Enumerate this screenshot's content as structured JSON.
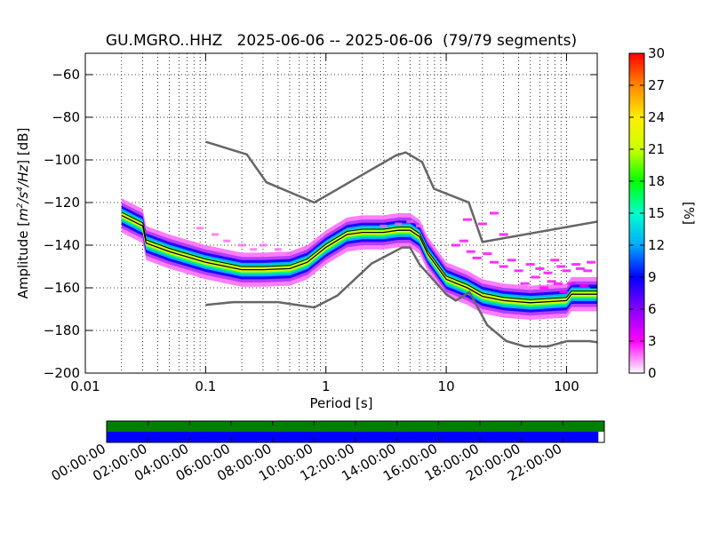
{
  "chart_data": {
    "type": "heatmap",
    "title": "GU.MGRO..HHZ   2025-06-06 -- 2025-06-06  (79/79 segments)",
    "xlabel": "Period [s]",
    "ylabel_prefix": "Amplitude [",
    "ylabel_unit_html": "m<tspan dy=\"-6\" font-size=\"9\">2</tspan><tspan dy=\"6\">/s</tspan><tspan dy=\"-6\" font-size=\"9\">4</tspan><tspan dy=\"6\">/Hz</tspan>",
    "ylabel_suffix": "] [dB]",
    "x_scale": "log",
    "xlim": [
      0.01,
      180
    ],
    "ylim": [
      -200,
      -50
    ],
    "x_ticks": [
      {
        "value": 0.01,
        "label": "0.01"
      },
      {
        "value": 0.1,
        "label": "0.1"
      },
      {
        "value": 1,
        "label": "1"
      },
      {
        "value": 10,
        "label": "10"
      },
      {
        "value": 100,
        "label": "100"
      }
    ],
    "y_ticks": [
      {
        "value": -60,
        "label": "−60"
      },
      {
        "value": -80,
        "label": "−80"
      },
      {
        "value": -100,
        "label": "−100"
      },
      {
        "value": -120,
        "label": "−120"
      },
      {
        "value": -140,
        "label": "−140"
      },
      {
        "value": -160,
        "label": "−160"
      },
      {
        "value": -180,
        "label": "−180"
      },
      {
        "value": -200,
        "label": "−200"
      }
    ],
    "grid": true,
    "colorbar": {
      "label": "[%]",
      "min": 0,
      "max": 30,
      "ticks": [
        "0",
        "3",
        "6",
        "9",
        "12",
        "15",
        "18",
        "21",
        "24",
        "27",
        "30"
      ]
    },
    "noise_models": [
      {
        "name": "high",
        "points": [
          [
            0.1,
            -91.5
          ],
          [
            0.22,
            -97.4
          ],
          [
            0.32,
            -110.5
          ],
          [
            0.8,
            -120
          ],
          [
            3.8,
            -98
          ],
          [
            4.6,
            -96.5
          ],
          [
            6.3,
            -101
          ],
          [
            7.9,
            -113.5
          ],
          [
            15.4,
            -120
          ],
          [
            20,
            -138.5
          ],
          [
            354.8,
            -126
          ]
        ]
      },
      {
        "name": "low",
        "points": [
          [
            0.1,
            -168
          ],
          [
            0.17,
            -166.7
          ],
          [
            0.4,
            -166.7
          ],
          [
            0.8,
            -169.2
          ],
          [
            1.24,
            -163.7
          ],
          [
            2.4,
            -148.6
          ],
          [
            4.3,
            -141.1
          ],
          [
            5,
            -141.1
          ],
          [
            6,
            -149
          ],
          [
            10,
            -163
          ],
          [
            12,
            -166
          ],
          [
            15.6,
            -162
          ],
          [
            21.9,
            -177.5
          ],
          [
            31.6,
            -185
          ],
          [
            45,
            -187.5
          ],
          [
            70,
            -187.5
          ],
          [
            101,
            -185
          ],
          [
            154,
            -185
          ],
          [
            328,
            -187.5
          ]
        ]
      }
    ],
    "center_line": {
      "points": [
        [
          0.02,
          -126
        ],
        [
          0.03,
          -131
        ],
        [
          0.032,
          -139
        ],
        [
          0.05,
          -143
        ],
        [
          0.1,
          -148
        ],
        [
          0.2,
          -151.5
        ],
        [
          0.3,
          -151.5
        ],
        [
          0.5,
          -151
        ],
        [
          0.7,
          -148
        ],
        [
          1,
          -141
        ],
        [
          1.5,
          -135
        ],
        [
          2,
          -134
        ],
        [
          3,
          -134
        ],
        [
          4,
          -133
        ],
        [
          5,
          -133
        ],
        [
          6,
          -136
        ],
        [
          7,
          -144
        ],
        [
          10,
          -156
        ],
        [
          15,
          -160
        ],
        [
          20,
          -164
        ],
        [
          30,
          -166
        ],
        [
          50,
          -167
        ],
        [
          100,
          -166
        ],
        [
          110,
          -163
        ],
        [
          180,
          -163
        ]
      ]
    },
    "density_bands": [
      {
        "points": [
          [
            0.02,
            -126
          ],
          [
            0.03,
            -131
          ],
          [
            0.032,
            -139
          ],
          [
            0.05,
            -143
          ],
          [
            0.1,
            -148
          ],
          [
            0.2,
            -151.5
          ],
          [
            0.3,
            -151.5
          ],
          [
            0.5,
            -151
          ],
          [
            0.7,
            -148
          ],
          [
            1,
            -141
          ],
          [
            1.5,
            -135
          ],
          [
            2,
            -134
          ],
          [
            3,
            -134
          ],
          [
            4,
            -133
          ],
          [
            5,
            -133
          ],
          [
            6,
            -136
          ],
          [
            7,
            -144
          ],
          [
            10,
            -156
          ],
          [
            15,
            -160
          ],
          [
            20,
            -164
          ],
          [
            30,
            -166
          ],
          [
            50,
            -167
          ],
          [
            100,
            -166
          ],
          [
            110,
            -163
          ]
        ],
        "half_width": 3,
        "color": "#ffffff"
      },
      {
        "points": [
          [
            0.02,
            -126
          ],
          [
            0.03,
            -131
          ],
          [
            0.032,
            -139
          ],
          [
            0.05,
            -143
          ],
          [
            0.1,
            -148
          ],
          [
            0.2,
            -151.5
          ],
          [
            0.3,
            -151.5
          ],
          [
            0.5,
            -151
          ],
          [
            0.7,
            -148
          ],
          [
            1,
            -141
          ],
          [
            1.5,
            -135
          ],
          [
            2,
            -134
          ],
          [
            3,
            -134
          ],
          [
            4,
            -133
          ],
          [
            5,
            -133
          ],
          [
            6,
            -136
          ],
          [
            7,
            -144
          ],
          [
            10,
            -156
          ],
          [
            15,
            -160
          ],
          [
            20,
            -164
          ],
          [
            30,
            -166
          ],
          [
            50,
            -167
          ],
          [
            100,
            -166
          ],
          [
            110,
            -163
          ]
        ],
        "half_width": 2.5,
        "color": "#ff00ff"
      }
    ],
    "gauge": {
      "time_labels": [
        "00:00:00",
        "02:00:00",
        "04:00:00",
        "06:00:00",
        "08:00:00",
        "10:00:00",
        "12:00:00",
        "14:00:00",
        "16:00:00",
        "18:00:00",
        "20:00:00",
        "22:00:00"
      ],
      "data_availability_fraction": 1.0,
      "processed_fraction": 0.988,
      "top_color": "#008000",
      "bottom_color": "#0000ff"
    }
  }
}
